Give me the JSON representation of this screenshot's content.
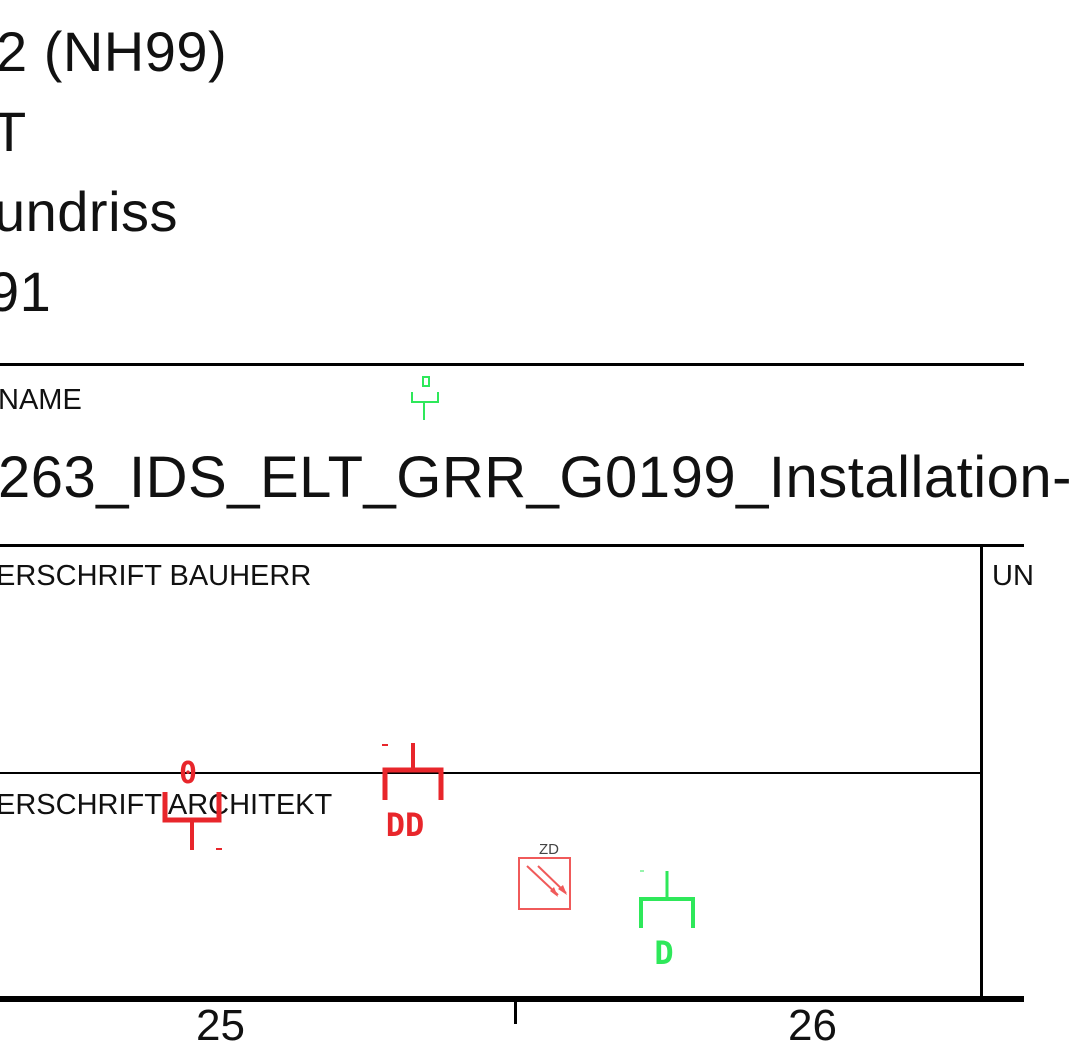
{
  "header_lines": {
    "line1": "2 (NH99)",
    "line2": "T",
    "line3": "undriss",
    "line4": "91"
  },
  "title_block": {
    "filename_label": "NAME",
    "filename_value": "263_IDS_ELT_GRR_G0199_Installation-",
    "signature_client_label": "ERSCHRIFT BAUHERR",
    "signature_architect_label": "ERSCHRIFT ARCHITEKT",
    "right_column_label": "UN"
  },
  "symbols": {
    "red_single_socket_label": "0",
    "red_double_socket_label": "DD",
    "zd_box_label": "ZD",
    "green_socket_label": "D",
    "green_top_socket_label": "0"
  },
  "scale": {
    "left": "25",
    "right": "26"
  },
  "colors": {
    "red_symbol": "#e8262b",
    "green_symbol": "#2ee85a",
    "zd_box": "#f05a5a",
    "line": "#000000"
  }
}
